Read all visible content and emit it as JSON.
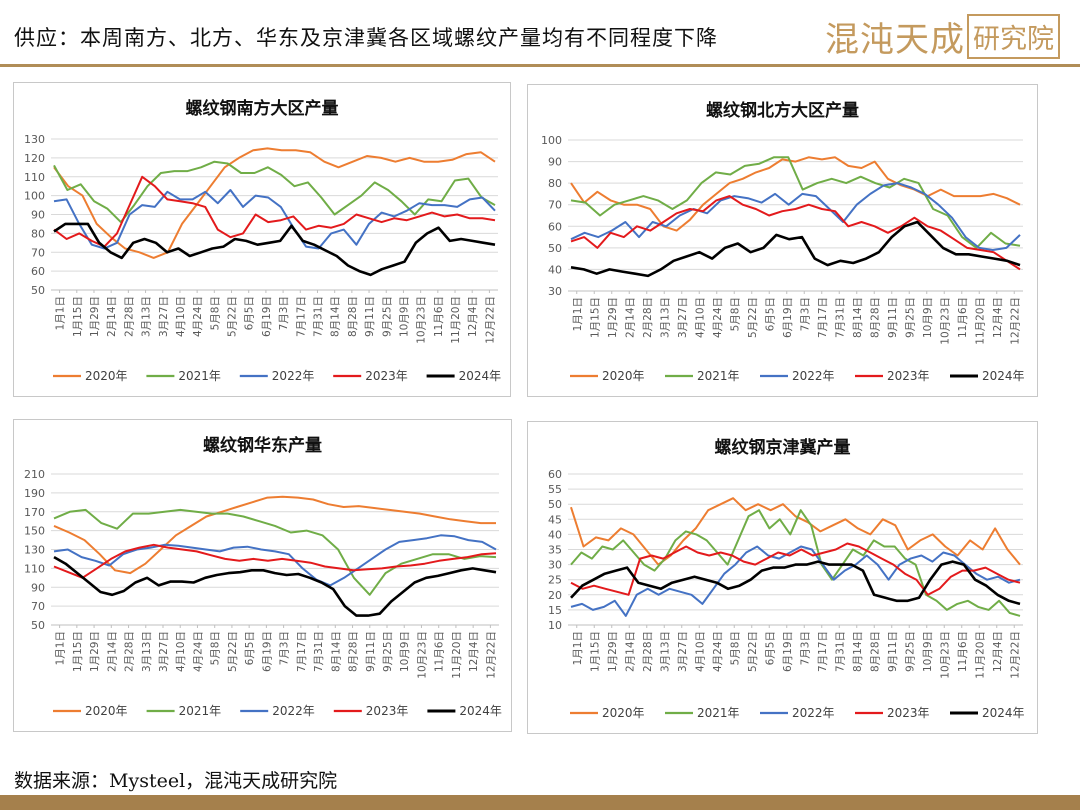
{
  "header": {
    "title": "供应：本周南方、北方、华东及京津冀各区域螺纹产量均有不同程度下降",
    "brand_main": "混沌天成",
    "brand_box": "研究院"
  },
  "footer": {
    "source": "数据来源：Mysteel，混沌天成研究院"
  },
  "colors": {
    "2020年": "#ED7D31",
    "2021年": "#70AD47",
    "2022年": "#4472C4",
    "2023年": "#E31A1C",
    "2024年": "#000000",
    "accent": "#b08d57"
  },
  "chart_data": [
    {
      "type": "line",
      "title": "螺纹钢南方大区产量",
      "ylim": [
        50,
        130
      ],
      "yticks": [
        50,
        60,
        70,
        80,
        90,
        100,
        110,
        120,
        130
      ],
      "x_labels": [
        "1月1日",
        "1月15日",
        "1月29日",
        "2月14日",
        "2月28日",
        "3月13日",
        "3月27日",
        "4月10日",
        "4月24日",
        "5月8日",
        "5月22日",
        "6月5日",
        "6月19日",
        "7月3日",
        "7月17日",
        "7月31日",
        "8月14日",
        "8月28日",
        "9月11日",
        "9月25日",
        "10月9日",
        "10月23日",
        "11月6日",
        "11月20日",
        "12月4日",
        "12月22日"
      ],
      "legend": [
        "2020年",
        "2021年",
        "2022年",
        "2023年",
        "2024年"
      ],
      "series": [
        {
          "name": "2020年",
          "values": [
            115,
            105,
            100,
            85,
            78,
            72,
            70,
            67,
            70,
            85,
            95,
            105,
            115,
            120,
            124,
            125,
            124,
            124,
            123,
            118,
            115,
            118,
            121,
            120,
            118,
            120,
            118,
            118,
            119,
            122,
            123,
            118
          ]
        },
        {
          "name": "2021年",
          "values": [
            116,
            103,
            106,
            97,
            93,
            86,
            95,
            105,
            112,
            113,
            113,
            115,
            118,
            117,
            112,
            112,
            115,
            111,
            105,
            107,
            99,
            90,
            95,
            100,
            107,
            103,
            97,
            90,
            98,
            97,
            108,
            109,
            99,
            95
          ]
        },
        {
          "name": "2022年",
          "values": [
            97,
            98,
            85,
            74,
            72,
            75,
            90,
            95,
            94,
            102,
            98,
            98,
            102,
            96,
            103,
            94,
            100,
            99,
            94,
            83,
            73,
            72,
            80,
            82,
            74,
            85,
            91,
            89,
            92,
            96,
            95,
            95,
            94,
            98,
            99,
            92
          ]
        },
        {
          "name": "2023年",
          "values": [
            82,
            77,
            80,
            76,
            73,
            80,
            95,
            110,
            105,
            98,
            97,
            96,
            94,
            82,
            78,
            80,
            90,
            86,
            87,
            89,
            82,
            84,
            83,
            85,
            90,
            88,
            86,
            88,
            87,
            89,
            91,
            89,
            90,
            88,
            88,
            87
          ]
        },
        {
          "name": "2024年",
          "values": [
            81,
            85,
            85,
            85,
            75,
            70,
            67,
            75,
            77,
            75,
            70,
            72,
            68,
            70,
            72,
            73,
            77,
            76,
            74,
            75,
            76,
            84,
            76,
            74,
            71,
            68,
            63,
            60,
            58,
            61,
            63,
            65,
            75,
            80,
            83,
            76,
            77,
            76,
            75,
            74
          ]
        }
      ]
    },
    {
      "type": "line",
      "title": "螺纹钢北方大区产量",
      "ylim": [
        30,
        100
      ],
      "yticks": [
        30,
        40,
        50,
        60,
        70,
        80,
        90,
        100
      ],
      "x_labels": [
        "1月1日",
        "1月15日",
        "1月29日",
        "2月14日",
        "2月28日",
        "3月13日",
        "3月27日",
        "4月10日",
        "4月24日",
        "5月8日",
        "5月22日",
        "6月5日",
        "6月19日",
        "7月3日",
        "7月17日",
        "7月31日",
        "8月14日",
        "8月28日",
        "9月11日",
        "9月25日",
        "10月9日",
        "10月23日",
        "11月6日",
        "11月20日",
        "12月4日",
        "12月22日"
      ],
      "legend": [
        "2020年",
        "2021年",
        "2022年",
        "2023年",
        "2024年"
      ],
      "series": [
        {
          "name": "2020年",
          "values": [
            80,
            71,
            76,
            72,
            70,
            70,
            68,
            60,
            58,
            63,
            70,
            75,
            80,
            82,
            85,
            87,
            91,
            90,
            92,
            91,
            92,
            88,
            87,
            90,
            82,
            79,
            77,
            74,
            77,
            74,
            74,
            74,
            75,
            73,
            70
          ]
        },
        {
          "name": "2021年",
          "values": [
            72,
            71,
            65,
            70,
            72,
            74,
            72,
            68,
            72,
            80,
            85,
            84,
            88,
            89,
            92,
            92,
            77,
            80,
            82,
            80,
            83,
            80,
            78,
            82,
            80,
            68,
            65,
            55,
            50,
            57,
            52,
            51
          ]
        },
        {
          "name": "2022年",
          "values": [
            54,
            57,
            55,
            58,
            62,
            55,
            62,
            60,
            65,
            68,
            66,
            72,
            74,
            73,
            71,
            75,
            70,
            75,
            74,
            68,
            62,
            70,
            75,
            79,
            80,
            78,
            75,
            70,
            64,
            55,
            50,
            49,
            50,
            56
          ]
        },
        {
          "name": "2023年",
          "values": [
            53,
            55,
            50,
            57,
            55,
            60,
            58,
            62,
            66,
            68,
            67,
            72,
            74,
            70,
            68,
            65,
            67,
            68,
            70,
            68,
            67,
            60,
            62,
            60,
            57,
            60,
            64,
            60,
            58,
            54,
            50,
            49,
            48,
            44,
            40
          ]
        },
        {
          "name": "2024年",
          "values": [
            41,
            40,
            38,
            40,
            39,
            38,
            37,
            40,
            44,
            46,
            48,
            45,
            50,
            52,
            48,
            50,
            56,
            54,
            55,
            45,
            42,
            44,
            43,
            45,
            48,
            55,
            60,
            62,
            56,
            50,
            47,
            47,
            46,
            45,
            44,
            42
          ]
        }
      ]
    },
    {
      "type": "line",
      "title": "螺纹钢华东产量",
      "ylim": [
        50,
        210
      ],
      "yticks": [
        50,
        70,
        90,
        110,
        130,
        150,
        170,
        190,
        210
      ],
      "x_labels": [
        "1月1日",
        "1月15日",
        "1月29日",
        "2月14日",
        "2月28日",
        "3月13日",
        "3月27日",
        "4月10日",
        "4月24日",
        "5月8日",
        "5月22日",
        "6月5日",
        "6月19日",
        "7月3日",
        "7月17日",
        "7月31日",
        "8月14日",
        "8月28日",
        "9月11日",
        "9月25日",
        "10月9日",
        "10月23日",
        "11月6日",
        "11月20日",
        "12月4日",
        "12月22日"
      ],
      "legend": [
        "2020年",
        "2021年",
        "2022年",
        "2023年",
        "2024年"
      ],
      "series": [
        {
          "name": "2020年",
          "values": [
            155,
            148,
            140,
            125,
            108,
            105,
            115,
            130,
            145,
            155,
            165,
            170,
            175,
            180,
            185,
            186,
            185,
            183,
            178,
            175,
            176,
            174,
            172,
            170,
            168,
            165,
            162,
            160,
            158,
            158
          ]
        },
        {
          "name": "2021年",
          "values": [
            163,
            170,
            172,
            158,
            152,
            168,
            168,
            170,
            172,
            170,
            168,
            168,
            165,
            160,
            155,
            148,
            150,
            145,
            130,
            100,
            82,
            105,
            115,
            120,
            125,
            125,
            120,
            123,
            122
          ]
        },
        {
          "name": "2022年",
          "values": [
            128,
            130,
            122,
            118,
            113,
            125,
            130,
            132,
            135,
            134,
            132,
            130,
            128,
            132,
            133,
            130,
            128,
            125,
            110,
            98,
            92,
            100,
            110,
            120,
            130,
            138,
            140,
            142,
            145,
            144,
            140,
            138,
            130
          ]
        },
        {
          "name": "2023年",
          "values": [
            112,
            106,
            100,
            110,
            120,
            128,
            132,
            135,
            132,
            130,
            128,
            124,
            120,
            118,
            120,
            118,
            120,
            118,
            116,
            112,
            110,
            108,
            109,
            110,
            112,
            113,
            115,
            118,
            120,
            122,
            125,
            126
          ]
        },
        {
          "name": "2024年",
          "values": [
            122,
            115,
            105,
            95,
            85,
            82,
            86,
            95,
            100,
            92,
            96,
            96,
            95,
            100,
            103,
            105,
            106,
            108,
            108,
            105,
            103,
            104,
            100,
            95,
            88,
            70,
            60,
            60,
            62,
            75,
            85,
            95,
            100,
            102,
            105,
            108,
            110,
            108,
            106
          ]
        }
      ]
    },
    {
      "type": "line",
      "title": "螺纹钢京津冀产量",
      "ylim": [
        10,
        60
      ],
      "yticks": [
        10,
        15,
        20,
        25,
        30,
        35,
        40,
        45,
        50,
        55,
        60
      ],
      "x_labels": [
        "1月1日",
        "1月15日",
        "1月29日",
        "2月14日",
        "2月28日",
        "3月13日",
        "3月27日",
        "4月10日",
        "4月24日",
        "5月8日",
        "5月22日",
        "6月5日",
        "6月19日",
        "7月3日",
        "7月17日",
        "7月31日",
        "8月14日",
        "8月28日",
        "9月11日",
        "9月25日",
        "10月9日",
        "10月23日",
        "11月6日",
        "11月20日",
        "12月4日",
        "12月22日"
      ],
      "legend": [
        "2020年",
        "2021年",
        "2022年",
        "2023年",
        "2024年"
      ],
      "series": [
        {
          "name": "2020年",
          "values": [
            49,
            36,
            39,
            38,
            42,
            40,
            35,
            30,
            33,
            38,
            42,
            48,
            50,
            52,
            48,
            50,
            48,
            50,
            46,
            44,
            41,
            43,
            45,
            42,
            40,
            45,
            43,
            35,
            38,
            40,
            36,
            33,
            38,
            35,
            42,
            35,
            30
          ]
        },
        {
          "name": "2021年",
          "values": [
            30,
            34,
            32,
            36,
            35,
            38,
            34,
            30,
            28,
            32,
            38,
            41,
            40,
            38,
            34,
            30,
            38,
            46,
            48,
            42,
            45,
            40,
            48,
            43,
            30,
            25,
            30,
            35,
            33,
            38,
            36,
            36,
            32,
            30,
            20,
            18,
            15,
            17,
            18,
            16,
            15,
            18,
            14,
            13
          ]
        },
        {
          "name": "2022年",
          "values": [
            16,
            17,
            15,
            16,
            18,
            13,
            20,
            22,
            20,
            22,
            21,
            20,
            17,
            22,
            27,
            30,
            34,
            36,
            33,
            32,
            34,
            36,
            35,
            30,
            25,
            28,
            30,
            33,
            30,
            25,
            30,
            32,
            33,
            31,
            34,
            33,
            30,
            27,
            25,
            26,
            24,
            25
          ]
        },
        {
          "name": "2023年",
          "values": [
            24,
            22,
            23,
            22,
            21,
            20,
            32,
            33,
            32,
            34,
            36,
            34,
            33,
            34,
            33,
            31,
            30,
            32,
            34,
            33,
            35,
            33,
            34,
            35,
            37,
            36,
            34,
            32,
            30,
            27,
            25,
            20,
            22,
            26,
            28,
            28,
            29,
            27,
            25,
            24
          ]
        },
        {
          "name": "2024年",
          "values": [
            19,
            23,
            25,
            27,
            28,
            29,
            24,
            23,
            22,
            24,
            25,
            26,
            25,
            24,
            22,
            23,
            25,
            28,
            29,
            29,
            30,
            30,
            31,
            30,
            30,
            30,
            28,
            20,
            19,
            18,
            18,
            19,
            25,
            30,
            31,
            30,
            25,
            23,
            20,
            18,
            17
          ]
        }
      ]
    }
  ]
}
